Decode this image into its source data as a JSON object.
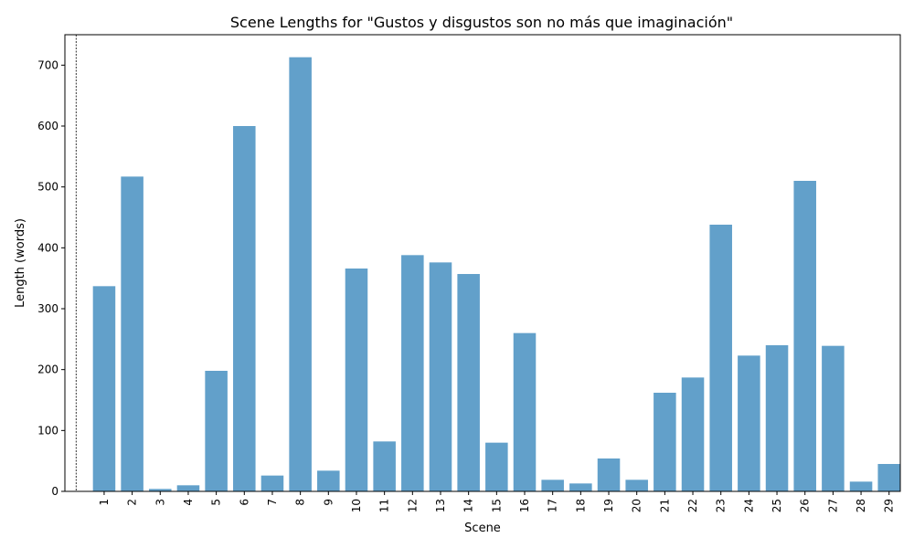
{
  "chart_data": {
    "type": "bar",
    "title": "Scene Lengths for \"Gustos y disgustos son no más que imaginación\"",
    "xlabel": "Scene",
    "ylabel": "Length (words)",
    "categories": [
      "1",
      "2",
      "3",
      "4",
      "5",
      "6",
      "7",
      "8",
      "9",
      "10",
      "11",
      "12",
      "13",
      "14",
      "15",
      "16",
      "17",
      "18",
      "19",
      "20",
      "21",
      "22",
      "23",
      "24",
      "25",
      "26",
      "27",
      "28",
      "29"
    ],
    "values": [
      337,
      517,
      4,
      10,
      198,
      600,
      26,
      713,
      34,
      366,
      82,
      388,
      376,
      357,
      80,
      260,
      19,
      13,
      54,
      19,
      162,
      187,
      438,
      223,
      240,
      510,
      239,
      16,
      45
    ],
    "ylim": [
      0,
      750
    ],
    "yticks": [
      0,
      100,
      200,
      300,
      400,
      500,
      600,
      700
    ],
    "ytick_labels": [
      "0",
      "100",
      "200",
      "300",
      "400",
      "500",
      "600",
      "700"
    ],
    "color": "#1f77b4",
    "grid": false,
    "reference_line_x": 0.5
  }
}
